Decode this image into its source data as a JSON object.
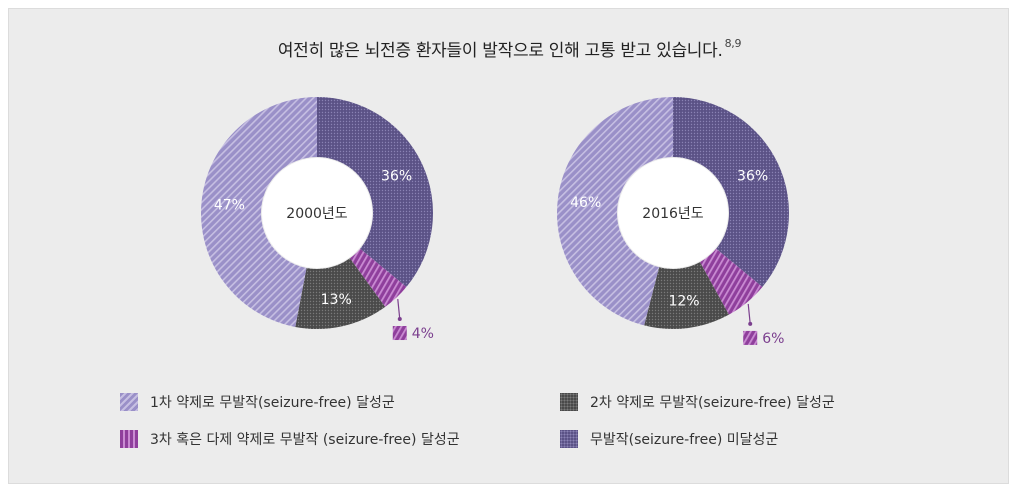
{
  "title": "여전히 많은 뇌전증 환자들이 발작으로 인해 고통 받고 있습니다.",
  "title_sup": "8,9",
  "colors": {
    "first_drug": "#9a90c8",
    "second_drug": "#4a4a4a",
    "third_or_multi": "#8f3f9c",
    "not_seizure_free": "#5b5286",
    "small_label": "#7b3f8e"
  },
  "legend": [
    {
      "label": "1차 약제로 무발작(seizure-free) 달성군",
      "swatch": "diagonal-hatch-lavender"
    },
    {
      "label": "2차 약제로 무발작(seizure-free) 달성군",
      "swatch": "dotted-dark-gray"
    },
    {
      "label": "3차 혹은 다제 약제로 무발작 (seizure-free) 달성군",
      "swatch": "vertical-stripes-purple"
    },
    {
      "label": "무발작(seizure-free) 미달성군",
      "swatch": "dotted-dark-purple"
    }
  ],
  "chart_data": [
    {
      "type": "pie",
      "center_label": "2000년도",
      "categories": [
        "무발작(seizure-free) 미달성군",
        "3차 혹은 다제 약제로 무발작 (seizure-free) 달성군",
        "2차 약제로 무발작(seizure-free) 달성군",
        "1차 약제로 무발작(seizure-free) 달성군"
      ],
      "values": [
        36,
        4,
        13,
        47
      ],
      "labels": [
        "36%",
        "4%",
        "13%",
        "47%"
      ]
    },
    {
      "type": "pie",
      "center_label": "2016년도",
      "categories": [
        "무발작(seizure-free) 미달성군",
        "3차 혹은 다제 약제로 무발작 (seizure-free) 달성군",
        "2차 약제로 무발작(seizure-free) 달성군",
        "1차 약제로 무발작(seizure-free) 달성군"
      ],
      "values": [
        36,
        6,
        12,
        46
      ],
      "labels": [
        "36%",
        "6%",
        "12%",
        "46%"
      ]
    }
  ]
}
